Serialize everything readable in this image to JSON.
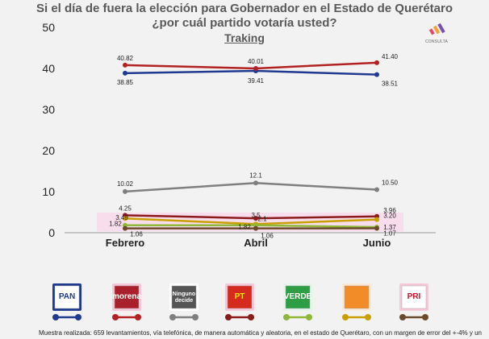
{
  "titles": {
    "line1": "Si el día de fuera la elección para Gobernador en el Estado de Querétaro",
    "line2": "¿por cuál partido votaría usted?",
    "line3": "Traking"
  },
  "brand": {
    "label": "CONSULTA"
  },
  "footnote": "Muestra realizada: 659 levantamientos, vía telefónica, de manera automática y aleatoria, en el estado de Querétaro, con un margen de error del +-4% y un",
  "chart_data": {
    "type": "line",
    "categories": [
      "Febrero",
      "Abril",
      "Junio"
    ],
    "ylim": [
      0,
      50
    ],
    "yticks": [
      0,
      10,
      20,
      30,
      40,
      50
    ],
    "grid": false,
    "series": [
      {
        "party": "PAN",
        "color": "#1f3a8f",
        "values": [
          38.85,
          39.41,
          38.51
        ],
        "labels": [
          "38.85",
          "39.41",
          "38.51"
        ],
        "label_pos": "below"
      },
      {
        "party": "Morena",
        "color": "#b22222",
        "values": [
          40.82,
          40.01,
          41.4
        ],
        "labels": [
          "40.82",
          "40.01",
          "41.40"
        ],
        "label_pos": "above"
      },
      {
        "party": "Ninguno",
        "color": "#7f7f7f",
        "values": [
          10.02,
          12.1,
          10.5
        ],
        "labels": [
          "10.02",
          "12.1",
          "10.50"
        ],
        "label_pos": "above"
      },
      {
        "party": "PT",
        "color": "#8b1a1a",
        "values": [
          4.25,
          3.5,
          3.96
        ],
        "labels": [
          "4.25",
          "3.5",
          "3.96"
        ],
        "label_pos": "above"
      },
      {
        "party": "MC",
        "color": "#c9a000",
        "values": [
          3.49,
          2.1,
          3.2
        ],
        "labels": [
          "3.49",
          "2.1",
          "3.20"
        ],
        "label_pos": "mid"
      },
      {
        "party": "PVEM",
        "color": "#8fb83a",
        "values": [
          1.82,
          1.82,
          1.37
        ],
        "labels": [
          "1.82",
          "1.82",
          "1.37"
        ],
        "label_pos": "mid"
      },
      {
        "party": "PRI",
        "color": "#6b4a2b",
        "values": [
          1.06,
          1.06,
          1.07
        ],
        "labels": [
          "1.06",
          "1.06",
          "1.07"
        ],
        "label_pos": "below"
      }
    ]
  },
  "legend": [
    {
      "name": "PAN",
      "text": "PAN",
      "bg": "#ffffff",
      "fg": "#1f3a8f",
      "box": "#1f3a8f",
      "line": "#1f3a8f",
      "icon": "pan-logo-icon"
    },
    {
      "name": "Morena",
      "text": "morena",
      "bg": "#a9202a",
      "fg": "#ffffff",
      "box": "#f7c6d8",
      "line": "#b22222",
      "icon": "morena-logo-icon"
    },
    {
      "name": "Ninguno",
      "text": "Ninguno decide",
      "bg": "#555555",
      "fg": "#ffffff",
      "box": "#ffffff",
      "line": "#7f7f7f",
      "icon": "ninguno-logo-icon"
    },
    {
      "name": "PT",
      "text": "PT",
      "bg": "#d52b1e",
      "fg": "#ffe000",
      "box": "#f7c6d8",
      "line": "#8b1a1a",
      "icon": "pt-logo-icon"
    },
    {
      "name": "PVEM",
      "text": "VERDE",
      "bg": "#2e9e44",
      "fg": "#ffffff",
      "box": "#e4f4ea",
      "line": "#8fb83a",
      "icon": "verde-logo-icon"
    },
    {
      "name": "MC",
      "text": "",
      "bg": "#f28c28",
      "fg": "#ffffff",
      "box": "#fde8d4",
      "line": "#c9a000",
      "icon": "mc-logo-icon"
    },
    {
      "name": "PRI",
      "text": "PRI",
      "bg": "#ffffff",
      "fg": "#c8102e",
      "box": "#f7c6d8",
      "line": "#6b4a2b",
      "icon": "pri-logo-icon"
    }
  ]
}
